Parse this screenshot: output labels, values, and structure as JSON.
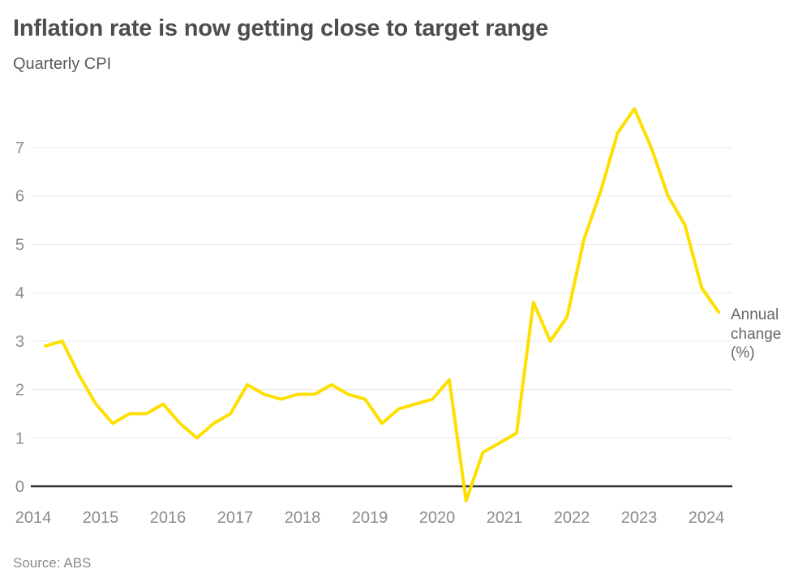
{
  "header": {
    "title": "Inflation rate is now getting close to target range",
    "subtitle": "Quarterly CPI"
  },
  "annotation": {
    "text": "Annual change (%)",
    "lines": [
      "Annual",
      "change",
      "(%)"
    ]
  },
  "footer": {
    "source": "Source: ABS"
  },
  "colors": {
    "line": "#FFDF00",
    "zero_axis": "#2B2B2B",
    "grid": "#E8E8E8",
    "title": "#4D4D4D",
    "subtitle": "#595959",
    "tick_label": "#8C8C8C",
    "annotation": "#666666",
    "source": "#8A8A8A",
    "background": "#FFFFFF"
  },
  "chart_data": {
    "type": "line",
    "title": "Inflation rate is now getting close to target range",
    "subtitle": "Quarterly CPI",
    "xlabel": "",
    "ylabel": "Annual change (%)",
    "source": "Source: ABS",
    "grid": "horizontal-only",
    "legend_position": "right-edge-annotation",
    "xticks": [
      "2014",
      "2015",
      "2016",
      "2017",
      "2018",
      "2019",
      "2020",
      "2021",
      "2022",
      "2023",
      "2024"
    ],
    "yticks": [
      0,
      1,
      2,
      3,
      4,
      5,
      6,
      7
    ],
    "ylim": [
      -0.5,
      8
    ],
    "series": [
      {
        "name": "Annual change (%)",
        "x": [
          "2014 Q1",
          "2014 Q2",
          "2014 Q3",
          "2014 Q4",
          "2015 Q1",
          "2015 Q2",
          "2015 Q3",
          "2015 Q4",
          "2016 Q1",
          "2016 Q2",
          "2016 Q3",
          "2016 Q4",
          "2017 Q1",
          "2017 Q2",
          "2017 Q3",
          "2017 Q4",
          "2018 Q1",
          "2018 Q2",
          "2018 Q3",
          "2018 Q4",
          "2019 Q1",
          "2019 Q2",
          "2019 Q3",
          "2019 Q4",
          "2020 Q1",
          "2020 Q2",
          "2020 Q3",
          "2020 Q4",
          "2021 Q1",
          "2021 Q2",
          "2021 Q3",
          "2021 Q4",
          "2022 Q1",
          "2022 Q2",
          "2022 Q3",
          "2022 Q4",
          "2023 Q1",
          "2023 Q2",
          "2023 Q3",
          "2023 Q4",
          "2024 Q1"
        ],
        "values": [
          2.9,
          3.0,
          2.3,
          1.7,
          1.3,
          1.5,
          1.5,
          1.7,
          1.3,
          1.0,
          1.3,
          1.5,
          2.1,
          1.9,
          1.8,
          1.9,
          1.9,
          2.1,
          1.9,
          1.8,
          1.3,
          1.6,
          1.7,
          1.8,
          2.2,
          -0.3,
          0.7,
          0.9,
          1.1,
          3.8,
          3.0,
          3.5,
          5.1,
          6.1,
          7.3,
          7.8,
          7.0,
          6.0,
          5.4,
          4.1,
          3.6
        ]
      }
    ]
  }
}
